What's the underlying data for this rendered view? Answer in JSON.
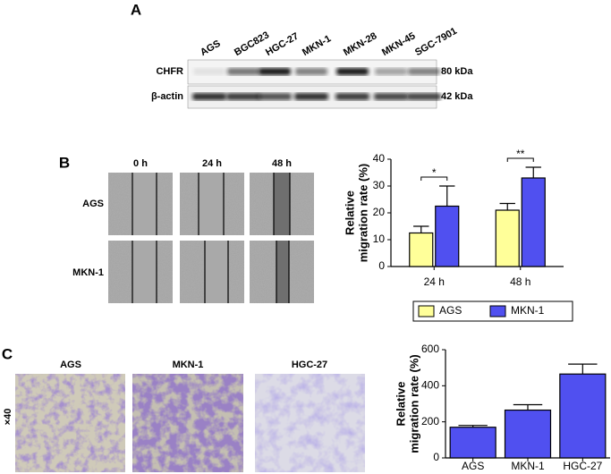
{
  "panel_a": {
    "label": "A",
    "lanes": [
      "AGS",
      "BGC823",
      "HGC-27",
      "MKN-1",
      "MKN-28",
      "MKN-45",
      "SGC-7901"
    ],
    "rows": [
      {
        "name": "CHFR",
        "size": "80 kDa"
      },
      {
        "name": "β-actin",
        "size": "42 kDa"
      }
    ]
  },
  "panel_b": {
    "label": "B",
    "time_points": [
      "0 h",
      "24 h",
      "48 h"
    ],
    "cell_lines": [
      "AGS",
      "MKN-1"
    ]
  },
  "panel_c": {
    "label": "C",
    "magnification": "×40",
    "cell_lines": [
      "AGS",
      "MKN-1",
      "HGC-27"
    ]
  },
  "chart_data": [
    {
      "type": "bar",
      "y_label": [
        "Relative",
        "migration rate (%)"
      ],
      "categories": [
        "24 h",
        "48 h"
      ],
      "series": [
        {
          "name": "AGS",
          "color": "#ffff99",
          "values": [
            12.5,
            21
          ],
          "errors": [
            2.5,
            2.5
          ]
        },
        {
          "name": "MKN-1",
          "color": "#5050f0",
          "values": [
            22.5,
            33
          ],
          "errors": [
            7.5,
            4
          ]
        }
      ],
      "annotations": [
        "*",
        "**"
      ],
      "ylim": [
        0,
        40
      ],
      "yticks": [
        0,
        10,
        20,
        30,
        40
      ],
      "legend": "bottom"
    },
    {
      "type": "bar",
      "y_label": [
        "Relative",
        "migration rate (%)"
      ],
      "categories": [
        "AGS",
        "MKN-1",
        "HGC-27"
      ],
      "series": [
        {
          "color": "#5050f0",
          "values": [
            170,
            265,
            465
          ],
          "errors": [
            10,
            30,
            55
          ]
        }
      ],
      "ylim": [
        0,
        600
      ],
      "yticks": [
        0,
        200,
        400,
        600
      ]
    }
  ]
}
